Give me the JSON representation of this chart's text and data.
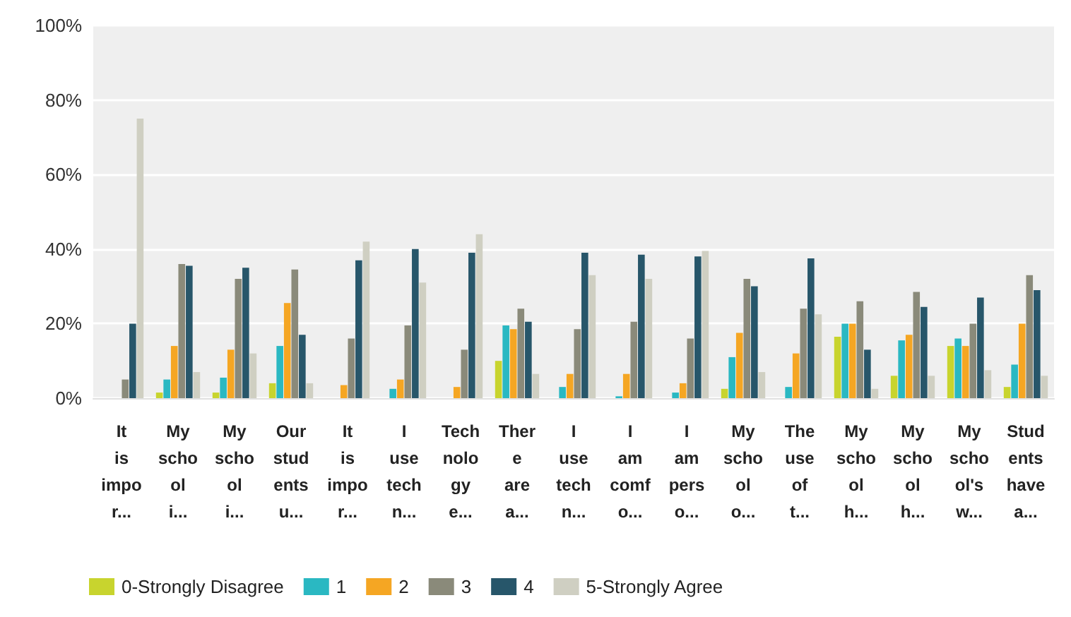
{
  "chart_data": {
    "type": "bar",
    "categories": [
      "It\nis\nimpo\nr...",
      "My\nscho\nol\ni...",
      "My\nscho\nol\ni...",
      "Our\nstud\nents\nu...",
      "It\nis\nimpo\nr...",
      "I\nuse\ntech\nn...",
      "Tech\nnolo\ngy\ne...",
      "Ther\ne\nare\na...",
      "I\nuse\ntech\nn...",
      "I\nam\ncomf\no...",
      "I\nam\npers\no...",
      "My\nscho\nol\no...",
      "The\nuse\nof\nt...",
      "My\nscho\nol\nh...",
      "My\nscho\nol\nh...",
      "My\nscho\nol's\nw...",
      "Stud\nents\nhave\na..."
    ],
    "series": [
      {
        "name": "0-Strongly Disagree",
        "color": "#c8d42e",
        "values": [
          0,
          1.5,
          1.5,
          4,
          0,
          0,
          0,
          10,
          0,
          0,
          0,
          2.5,
          0,
          16.5,
          6,
          14,
          3
        ]
      },
      {
        "name": "1",
        "color": "#2ab8c2",
        "values": [
          0,
          5,
          5.5,
          14,
          0,
          2.5,
          0,
          19.5,
          3,
          0.5,
          1.5,
          11,
          3,
          20,
          15.5,
          16,
          9
        ]
      },
      {
        "name": "2",
        "color": "#f5a623",
        "values": [
          0,
          14,
          13,
          25.5,
          3.5,
          5,
          3,
          18.5,
          6.5,
          6.5,
          4,
          17.5,
          12,
          20,
          17,
          14,
          20
        ]
      },
      {
        "name": "3",
        "color": "#8a8a7a",
        "values": [
          5,
          36,
          32,
          34.5,
          16,
          19.5,
          13,
          24,
          18.5,
          20.5,
          16,
          32,
          24,
          26,
          28.5,
          20,
          33
        ]
      },
      {
        "name": "4",
        "color": "#27566a",
        "values": [
          20,
          35.5,
          35,
          17,
          37,
          40,
          39,
          20.5,
          39,
          38.5,
          38,
          30,
          37.5,
          13,
          24.5,
          27,
          29
        ]
      },
      {
        "name": "5-Strongly Agree",
        "color": "#cfcfc2",
        "values": [
          75,
          7,
          12,
          4,
          42,
          31,
          44,
          6.5,
          33,
          32,
          39.5,
          7,
          22.5,
          2.5,
          6,
          7.5,
          6
        ]
      }
    ],
    "ylim": [
      0,
      100
    ],
    "yticks": [
      {
        "value": 0,
        "label": "0%"
      },
      {
        "value": 20,
        "label": "20%"
      },
      {
        "value": 40,
        "label": "40%"
      },
      {
        "value": 60,
        "label": "60%"
      },
      {
        "value": 80,
        "label": "80%"
      },
      {
        "value": 100,
        "label": "100%"
      }
    ],
    "grid": "y",
    "legend": "bottom"
  }
}
